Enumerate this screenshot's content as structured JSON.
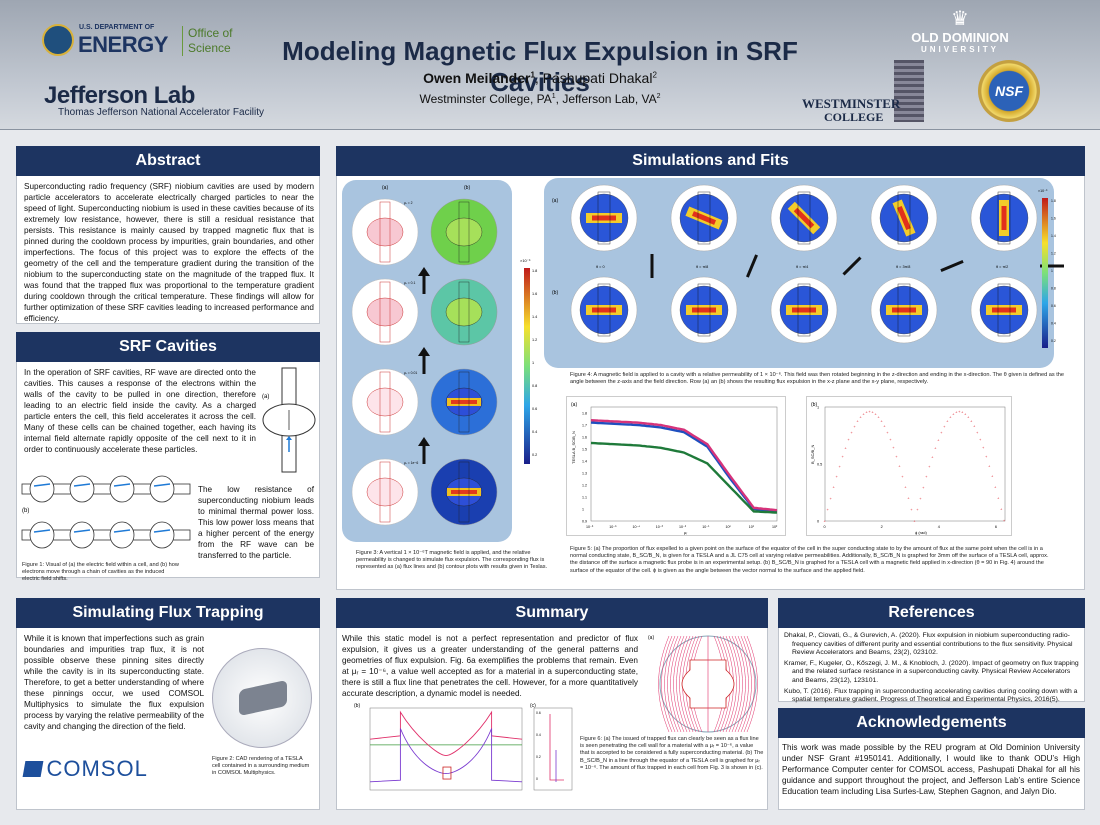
{
  "header": {
    "title": "Modeling Magnetic Flux Expulsion in SRF Cavities",
    "author_main": "Owen Meilander",
    "author_main_sup": "1",
    "author_rest": ", Pashupati Dhakal",
    "author_rest_sup": "2",
    "affiliations": "Westminster College, PA",
    "affil_sup1": "1",
    "affil_mid": ", Jefferson Lab, VA",
    "affil_sup2": "2"
  },
  "logos": {
    "doe_us": "U.S. DEPARTMENT OF",
    "doe_energy": "ENERGY",
    "doe_office1": "Office of",
    "doe_office2": "Science",
    "jlab": "Jefferson Lab",
    "jlab_sub": "Thomas Jefferson National Accelerator Facility",
    "odu1": "OLD DOMINION",
    "odu2": "UNIVERSITY",
    "westminster1": "WESTMINSTER",
    "westminster2": "COLLEGE",
    "nsf": "NSF",
    "comsol": "COMSOL"
  },
  "abstract": {
    "heading": "Abstract",
    "text": "Superconducting radio frequency (SRF) niobium cavities are used by modern particle accelerators to accelerate electrically charged particles to near the speed of light. Superconducting niobium is used in these cavities because of its extremely low resistance, however, there is still a residual resistance that persists. This resistance is mainly caused by trapped magnetic flux that is pinned during the cooldown process by impurities, grain boundaries, and other imperfections. The focus of this project was to explore the effects of the geometry of the cell and the temperature gradient during the transition of the niobium to the superconducting state on the magnitude of the trapped flux. It was found that the trapped flux was proportional to the temperature gradient during cooldown through the critical temperature. These findings will allow for further optimization of these SRF cavities leading to increased performance and efficiency."
  },
  "srf": {
    "heading": "SRF Cavities",
    "text1": "In the operation of SRF cavities, RF wave are directed onto the cavities. This causes a response of the electrons within the walls of the cavity to be pulled in one direction, therefore leading to an electric field inside the cavity. As a charged particle enters the cell, this field accelerates it across the cell. Many of these cells can be chained together, each having its internal field alternate rapidly opposite of the cell next to it in order to continuously accelerate these particles.",
    "text2": "The low resistance of superconducting niobium leads to minimal thermal power loss. This low power loss means that a higher percent of the energy from the RF wave can be transferred to the particle.",
    "fig_caption": "Figure 1: Visual of (a) the electric field within a cell, and (b) how electrons move through a chain of cavities as the induced electric field shifts.",
    "label_a": "(a)",
    "label_b": "(b)"
  },
  "trapping": {
    "heading": "Simulating Flux Trapping",
    "text": "While it is known that imperfections such as grain boundaries and impurities trap flux, it is not possible observe these pinning sites directly while the cavity is in its superconducting state. Therefore, to get a better understanding of where these pinnings occur, we used COMSOL Multiphysics to simulate the flux expulsion process by varying the relative permeability of the cavity and changing the direction of the field.",
    "fig_caption": "Figure 2: CAD rendering of a TESLA cell contained in a surrounding medium in COMSOL Multiphysics."
  },
  "sims": {
    "heading": "Simulations and Fits",
    "fig3_caption": "Figure 3: A vertical 1 × 10⁻⁶T magnetic field is applied, and the relative permeability is changed to simulate flux expulsion. The corresponding flux is represented as (a) flux lines and (b) contour plots with results given in Teslas.",
    "fig4_caption": "Figure 4: A magnetic field is applied to a cavity with a relative permeability of 1 × 10⁻⁶. This field was then rotated beginning in the z-direction and ending in the x-direction. The θ given is defined as the angle between the z-axis and the field direction. Row (a) an (b) shows the resulting flux expulsion in the x-z plane and the x-y plane, respectively.",
    "fig5_caption": "Figure 5: (a) The proportion of flux expelled to a given point on the surface of the equator of the cell in the super conducting state to by the amount of flux at the same point when the cell is in a normal conducting state, B_SC/B_N, is given for a TESLA and a JL C75 cell at varying relative permeabilities. Additionally, B_SC/B_N is graphed for 3mm off the surface of a TESLA cell, approx. the distance off the surface a magnetic flux probe is in an experimental setup. (b) B_SC/B_N is graphed for a TESLA cell with a magnetic field applied in x-direction (θ = 90 in Fig. 4) around the surface of the equator of the cell. ϕ is given as the angle between the vector normal to the surface and the applied field.",
    "mu_labels": [
      "μᵣ = 2",
      "μᵣ = 0.1",
      "μᵣ = 0.01",
      "μᵣ = 1e−6"
    ],
    "theta_labels": [
      "θ = 0",
      "θ = π/8",
      "θ = π/4",
      "θ = 3π/8",
      "θ = π/2"
    ],
    "colorbar_ticks": [
      "1.8",
      "1.6",
      "1.4",
      "1.2",
      "1",
      "0.8",
      "0.6",
      "0.4",
      "0.2"
    ],
    "colorbar_exp": "×10⁻⁶",
    "label_a": "(a)",
    "label_b": "(b)"
  },
  "chart_data": [
    {
      "type": "line",
      "title": "",
      "xlabel": "μᵣ",
      "ylabel": "TESLA   B_SC/B_N",
      "xscale": "log",
      "x": [
        1e-06,
        1e-05,
        0.0001,
        0.001,
        0.01,
        0.1,
        1,
        10,
        100
      ],
      "xticks": [
        "10⁻⁶",
        "10⁻⁵",
        "10⁻⁴",
        "10⁻³",
        "10⁻²",
        "10⁻¹",
        "10⁰",
        "10¹",
        "10²"
      ],
      "yticks": [
        "0.9",
        "1",
        "1.1",
        "1.2",
        "1.3",
        "1.4",
        "1.5",
        "1.6",
        "1.7",
        "1.8"
      ],
      "ylim": [
        0.9,
        1.85
      ],
      "series": [
        {
          "color": "#1f4fbf",
          "values": [
            1.72,
            1.71,
            1.7,
            1.68,
            1.64,
            1.52,
            1.25,
            1.0,
            0.98
          ]
        },
        {
          "color": "#d6337a",
          "values": [
            1.74,
            1.73,
            1.72,
            1.7,
            1.66,
            1.54,
            1.27,
            1.01,
            0.99
          ]
        },
        {
          "color": "#1f7a3a",
          "values": [
            1.55,
            1.54,
            1.53,
            1.51,
            1.47,
            1.38,
            1.18,
            0.98,
            0.97
          ]
        }
      ]
    },
    {
      "type": "scatter",
      "title": "",
      "xlabel": "ϕ (rad)",
      "ylabel": "B_SC/B_N",
      "xlim": [
        0,
        6.3
      ],
      "ylim": [
        0,
        1
      ],
      "xticks": [
        "0",
        "2",
        "4",
        "6"
      ],
      "yticks": [
        "0",
        "0.5",
        "1"
      ],
      "note": "|sin ϕ| shaped two arches"
    }
  ],
  "summary": {
    "heading": "Summary",
    "text": "While this static model is not a perfect representation and predictor of flux expulsion, it gives us a greater understanding of the general patterns and geometries of flux expulsion. Fig. 6a exemplifies the problems that remain. Even at μᵣ = 10⁻⁶, a value well accepted as for a material in a superconducting state, there is still a flux line that penetrates the cell. However, for a more quantitatively accurate description, a dynamic model is needed.",
    "fig6_caption": "Figure 6: (a) The issued of trapped flux can clearly be seen as a flux line is seen penetrating the cell wall for a material with a μᵣ = 10⁻⁶, a value that is accepted to be considered a fully superconducting material. (b) The B_SC/B_N in a line through the equator of a TESLA cell is graphed for μᵣ = 10⁻⁶. The amount of flux trapped in each cell from Fig. 3 is shown in (c).",
    "label_a": "(a)",
    "label_b": "(b)",
    "label_c": "(c)"
  },
  "references": {
    "heading": "References",
    "items": [
      "Dhakal, P., Ciovati, G., & Gurevich, A. (2020). Flux expulsion in niobium superconducting radio-frequency cavities of different purity and essential contributions to the flux sensitivity. Physical Review Accelerators and Beams, 23(2), 023102.",
      "Kramer, F., Kugeler, O., Kőszegi, J. M., & Knobloch, J. (2020). Impact of geometry on flux trapping and the related surface resistance in a superconducting cavity. Physical Review Accelerators and Beams, 23(12), 123101.",
      "Kubo, T. (2016). Flux trapping in superconducting accelerating cavities during cooling down with a spatial temperature gradient. Progress of Theoretical and Experimental Physics, 2016(5)."
    ]
  },
  "ack": {
    "heading": "Acknowledgements",
    "text": "This work was made possible by the REU program at Old Dominion University under NSF Grant #1950141. Additionally, I would like to thank ODU’s High Performance Computer center for COMSOL access, Pashupati Dhakal for all his guidance and support throughout the project, and Jefferson Lab’s entire Science Education team including Lisa Surles-Law, Stephen Gagnon, and Jalyn Dio."
  },
  "colors": {
    "section": "#1d3461",
    "panel": "#a9c4df",
    "pink": "#e0306a",
    "green": "#1f7a3a",
    "blue": "#1f4fbf"
  }
}
